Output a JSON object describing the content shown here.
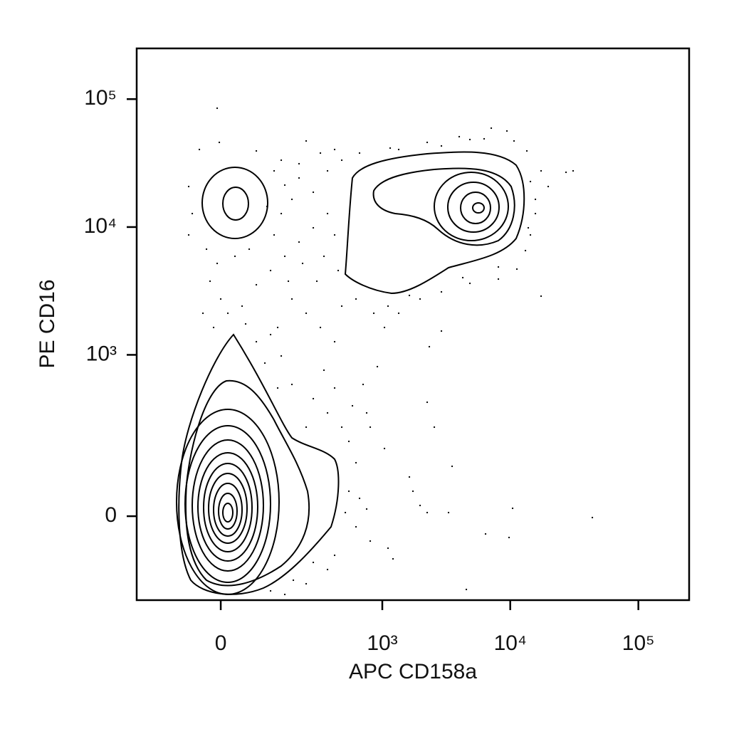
{
  "chart_data": {
    "type": "contour",
    "x_label": "APC CD158a",
    "y_label": "PE CD16",
    "x_scale": "biexponential",
    "y_scale": "biexponential",
    "xlim": [
      -237,
      249000
    ],
    "ylim": [
      -237,
      249000
    ],
    "xticks": [
      0,
      {
        "value": 1000,
        "label": "10³"
      },
      {
        "value": 10000,
        "label": "10⁴"
      },
      {
        "value": 100000,
        "label": "10⁵"
      }
    ],
    "yticks": [
      0,
      {
        "value": 1000,
        "label": "10³"
      },
      {
        "value": 10000,
        "label": "10⁴"
      },
      {
        "value": 100000,
        "label": "10⁵"
      }
    ],
    "color": "#000000"
  }
}
